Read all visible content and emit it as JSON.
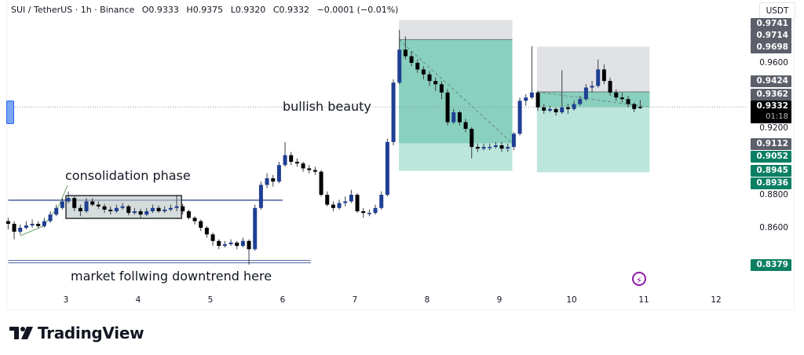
{
  "header": {
    "symbol": "SUI / TetherUS · 1h · Binance",
    "open": "O0.9333",
    "high": "H0.9375",
    "low": "L0.9320",
    "close": "C0.9332",
    "change": "−0.0001 (−0.01%)"
  },
  "currency_button": "USDT",
  "price_axis_labels": [
    {
      "text": "0.9741",
      "kind": "gray"
    },
    {
      "text": "0.9714",
      "kind": "gray"
    },
    {
      "text": "0.9698",
      "kind": "gray"
    },
    {
      "text": "0.9600",
      "kind": "plain"
    },
    {
      "text": "0.9424",
      "kind": "gray"
    },
    {
      "text": "0.9362",
      "kind": "gray"
    },
    {
      "text": "0.9200",
      "kind": "plain"
    },
    {
      "text": "0.9112",
      "kind": "gray"
    },
    {
      "text": "0.9052",
      "kind": "green"
    },
    {
      "text": "0.8945",
      "kind": "green"
    },
    {
      "text": "0.8936",
      "kind": "green"
    },
    {
      "text": "0.8800",
      "kind": "plain"
    },
    {
      "text": "0.8600",
      "kind": "plain"
    },
    {
      "text": "0.8379",
      "kind": "green"
    }
  ],
  "last_price": {
    "value": "0.9332",
    "countdown": "01:18"
  },
  "annotations": {
    "consolidation": "consolidation phase",
    "bullish": "bullish beauty",
    "downtrend": "market follwing downtrend here"
  },
  "brand": "TradingView",
  "colors": {
    "up_candle": "#1f3f94",
    "down_candle": "#000000",
    "target_zone": "#9fdccd",
    "target_zone_reached": "#7ccab6",
    "stop_zone": "#dcdde0",
    "trend_line": "#4a5f9e",
    "box_fill": "#b9c4c4"
  },
  "chart_data": {
    "type": "candlestick",
    "xlabel": "",
    "ylabel": "",
    "x_ticks": [
      "3",
      "4",
      "5",
      "6",
      "7",
      "8",
      "9",
      "10",
      "11",
      "12"
    ],
    "ylim": [
      0.825,
      0.99
    ],
    "y_ticks": [
      "0.9600",
      "0.9200",
      "0.8800",
      "0.8600"
    ],
    "start_day": 2.2,
    "interval_hours": 2,
    "ohlc": [
      [
        0.864,
        0.866,
        0.859,
        0.8624
      ],
      [
        0.8624,
        0.864,
        0.853,
        0.8576
      ],
      [
        0.8576,
        0.862,
        0.856,
        0.86
      ],
      [
        0.86,
        0.864,
        0.859,
        0.8614
      ],
      [
        0.8614,
        0.865,
        0.86,
        0.8624
      ],
      [
        0.8624,
        0.864,
        0.8595,
        0.861
      ],
      [
        0.861,
        0.866,
        0.86,
        0.864
      ],
      [
        0.864,
        0.87,
        0.863,
        0.868
      ],
      [
        0.868,
        0.874,
        0.867,
        0.872
      ],
      [
        0.872,
        0.878,
        0.871,
        0.876
      ],
      [
        0.876,
        0.882,
        0.875,
        0.878
      ],
      [
        0.878,
        0.879,
        0.87,
        0.872
      ],
      [
        0.872,
        0.874,
        0.867,
        0.87
      ],
      [
        0.87,
        0.878,
        0.869,
        0.876
      ],
      [
        0.876,
        0.878,
        0.873,
        0.874
      ],
      [
        0.874,
        0.876,
        0.8715,
        0.873
      ],
      [
        0.873,
        0.8745,
        0.869,
        0.871
      ],
      [
        0.871,
        0.873,
        0.868,
        0.87
      ],
      [
        0.87,
        0.874,
        0.869,
        0.872
      ],
      [
        0.872,
        0.875,
        0.871,
        0.873
      ],
      [
        0.873,
        0.874,
        0.8675,
        0.869
      ],
      [
        0.869,
        0.872,
        0.868,
        0.87
      ],
      [
        0.87,
        0.8715,
        0.866,
        0.868
      ],
      [
        0.868,
        0.872,
        0.867,
        0.87
      ],
      [
        0.87,
        0.874,
        0.869,
        0.872
      ],
      [
        0.872,
        0.8735,
        0.869,
        0.87
      ],
      [
        0.87,
        0.873,
        0.869,
        0.871
      ],
      [
        0.871,
        0.874,
        0.87,
        0.872
      ],
      [
        0.872,
        0.88,
        0.87,
        0.873
      ],
      [
        0.873,
        0.8745,
        0.868,
        0.87
      ],
      [
        0.87,
        0.871,
        0.865,
        0.866
      ],
      [
        0.866,
        0.867,
        0.862,
        0.864
      ],
      [
        0.864,
        0.865,
        0.858,
        0.86
      ],
      [
        0.86,
        0.861,
        0.854,
        0.856
      ],
      [
        0.856,
        0.857,
        0.849,
        0.852
      ],
      [
        0.852,
        0.853,
        0.847,
        0.849
      ],
      [
        0.849,
        0.852,
        0.848,
        0.85
      ],
      [
        0.85,
        0.853,
        0.849,
        0.851
      ],
      [
        0.851,
        0.852,
        0.847,
        0.849
      ],
      [
        0.849,
        0.854,
        0.848,
        0.852
      ],
      [
        0.852,
        0.853,
        0.8376,
        0.847
      ],
      [
        0.847,
        0.874,
        0.846,
        0.872
      ],
      [
        0.872,
        0.888,
        0.871,
        0.886
      ],
      [
        0.886,
        0.893,
        0.884,
        0.89
      ],
      [
        0.89,
        0.892,
        0.885,
        0.888
      ],
      [
        0.888,
        0.9,
        0.887,
        0.898
      ],
      [
        0.898,
        0.912,
        0.897,
        0.904
      ],
      [
        0.904,
        0.906,
        0.898,
        0.9
      ],
      [
        0.9,
        0.902,
        0.897,
        0.899
      ],
      [
        0.899,
        0.9,
        0.894,
        0.896
      ],
      [
        0.896,
        0.898,
        0.893,
        0.895
      ],
      [
        0.895,
        0.897,
        0.892,
        0.894
      ],
      [
        0.894,
        0.895,
        0.879,
        0.88
      ],
      [
        0.88,
        0.882,
        0.873,
        0.874
      ],
      [
        0.874,
        0.876,
        0.87,
        0.872
      ],
      [
        0.872,
        0.877,
        0.871,
        0.875
      ],
      [
        0.875,
        0.879,
        0.873,
        0.876
      ],
      [
        0.876,
        0.883,
        0.875,
        0.88
      ],
      [
        0.88,
        0.881,
        0.869,
        0.87
      ],
      [
        0.87,
        0.872,
        0.866,
        0.869
      ],
      [
        0.869,
        0.871,
        0.867,
        0.869
      ],
      [
        0.869,
        0.874,
        0.868,
        0.872
      ],
      [
        0.872,
        0.882,
        0.871,
        0.88
      ],
      [
        0.88,
        0.914,
        0.879,
        0.912
      ],
      [
        0.912,
        0.95,
        0.91,
        0.948
      ],
      [
        0.948,
        0.98,
        0.947,
        0.968
      ],
      [
        0.968,
        0.976,
        0.962,
        0.964
      ],
      [
        0.964,
        0.967,
        0.958,
        0.96
      ],
      [
        0.96,
        0.962,
        0.954,
        0.956
      ],
      [
        0.956,
        0.958,
        0.95,
        0.953
      ],
      [
        0.953,
        0.955,
        0.946,
        0.949
      ],
      [
        0.949,
        0.951,
        0.943,
        0.947
      ],
      [
        0.947,
        0.949,
        0.938,
        0.942
      ],
      [
        0.942,
        0.944,
        0.922,
        0.924
      ],
      [
        0.924,
        0.932,
        0.923,
        0.93
      ],
      [
        0.93,
        0.931,
        0.922,
        0.924
      ],
      [
        0.924,
        0.926,
        0.918,
        0.92
      ],
      [
        0.92,
        0.921,
        0.902,
        0.909
      ],
      [
        0.909,
        0.911,
        0.906,
        0.908
      ],
      [
        0.908,
        0.911,
        0.907,
        0.909
      ],
      [
        0.909,
        0.911,
        0.907,
        0.909
      ],
      [
        0.909,
        0.912,
        0.908,
        0.91
      ],
      [
        0.91,
        0.912,
        0.906,
        0.908
      ],
      [
        0.908,
        0.911,
        0.906,
        0.909
      ],
      [
        0.909,
        0.918,
        0.907,
        0.917
      ],
      [
        0.917,
        0.939,
        0.916,
        0.937
      ],
      [
        0.937,
        0.941,
        0.934,
        0.939
      ],
      [
        0.939,
        0.97,
        0.938,
        0.942
      ],
      [
        0.942,
        0.943,
        0.931,
        0.933
      ],
      [
        0.933,
        0.935,
        0.929,
        0.931
      ],
      [
        0.931,
        0.934,
        0.93,
        0.932
      ],
      [
        0.932,
        0.933,
        0.928,
        0.93
      ],
      [
        0.93,
        0.9555,
        0.929,
        0.933
      ],
      [
        0.933,
        0.935,
        0.929,
        0.932
      ],
      [
        0.932,
        0.937,
        0.931,
        0.935
      ],
      [
        0.935,
        0.94,
        0.934,
        0.938
      ],
      [
        0.938,
        0.947,
        0.937,
        0.945
      ],
      [
        0.945,
        0.949,
        0.942,
        0.946
      ],
      [
        0.946,
        0.962,
        0.945,
        0.956
      ],
      [
        0.956,
        0.959,
        0.947,
        0.949
      ],
      [
        0.949,
        0.951,
        0.94,
        0.942
      ],
      [
        0.942,
        0.944,
        0.937,
        0.939
      ],
      [
        0.939,
        0.942,
        0.936,
        0.938
      ],
      [
        0.938,
        0.94,
        0.933,
        0.935
      ],
      [
        0.935,
        0.936,
        0.93,
        0.932
      ],
      [
        0.9333,
        0.9375,
        0.932,
        0.9332
      ]
    ],
    "horizontal_lines": [
      {
        "price": 0.8767,
        "from_day": 2.2,
        "to_day": 6.0
      },
      {
        "price": 0.8392,
        "from_day": 2.2,
        "to_day": 6.39
      }
    ],
    "consolidation_box": {
      "from_day": 3.0,
      "to_day": 4.6,
      "top": 0.8795,
      "bottom": 0.8657
    },
    "short_positions": [
      {
        "from_day": 7.61,
        "to_day": 9.18,
        "stop": 0.986,
        "entry": 0.9741,
        "target": 0.8945,
        "reached": 0.9112
      },
      {
        "from_day": 9.52,
        "to_day": 11.08,
        "stop": 0.9698,
        "entry": 0.9424,
        "target": 0.8936,
        "reached": 0.9332
      }
    ],
    "current_price": 0.9332
  }
}
